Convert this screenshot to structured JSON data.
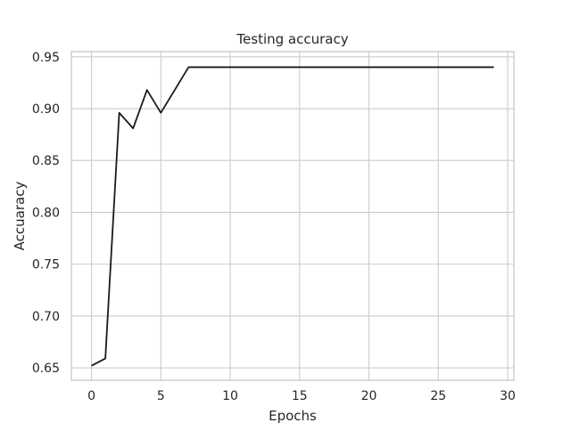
{
  "chart_data": {
    "type": "line",
    "title": "Testing accuracy",
    "xlabel": "Epochs",
    "ylabel": "Accuaracy",
    "xlim": [
      -1.45,
      30.45
    ],
    "ylim": [
      0.638,
      0.955
    ],
    "xticks": [
      0,
      5,
      10,
      15,
      20,
      25,
      30
    ],
    "yticks": [
      0.65,
      0.7,
      0.75,
      0.8,
      0.85,
      0.9,
      0.95
    ],
    "x_tick_labels": [
      "0",
      "5",
      "10",
      "15",
      "20",
      "25",
      "30"
    ],
    "y_tick_labels": [
      "0.65",
      "0.70",
      "0.75",
      "0.80",
      "0.85",
      "0.90",
      "0.95"
    ],
    "grid": true,
    "series": [
      {
        "color": "#1a1a1a",
        "x": [
          0,
          1,
          2,
          3,
          4,
          5,
          6,
          7,
          8,
          9,
          10,
          11,
          12,
          13,
          14,
          15,
          16,
          17,
          18,
          19,
          20,
          21,
          22,
          23,
          24,
          25,
          26,
          27,
          28,
          29
        ],
        "values": [
          0.652,
          0.659,
          0.896,
          0.881,
          0.918,
          0.896,
          0.918,
          0.94,
          0.94,
          0.94,
          0.94,
          0.94,
          0.94,
          0.94,
          0.94,
          0.94,
          0.94,
          0.94,
          0.94,
          0.94,
          0.94,
          0.94,
          0.94,
          0.94,
          0.94,
          0.94,
          0.94,
          0.94,
          0.94,
          0.94
        ]
      }
    ]
  }
}
